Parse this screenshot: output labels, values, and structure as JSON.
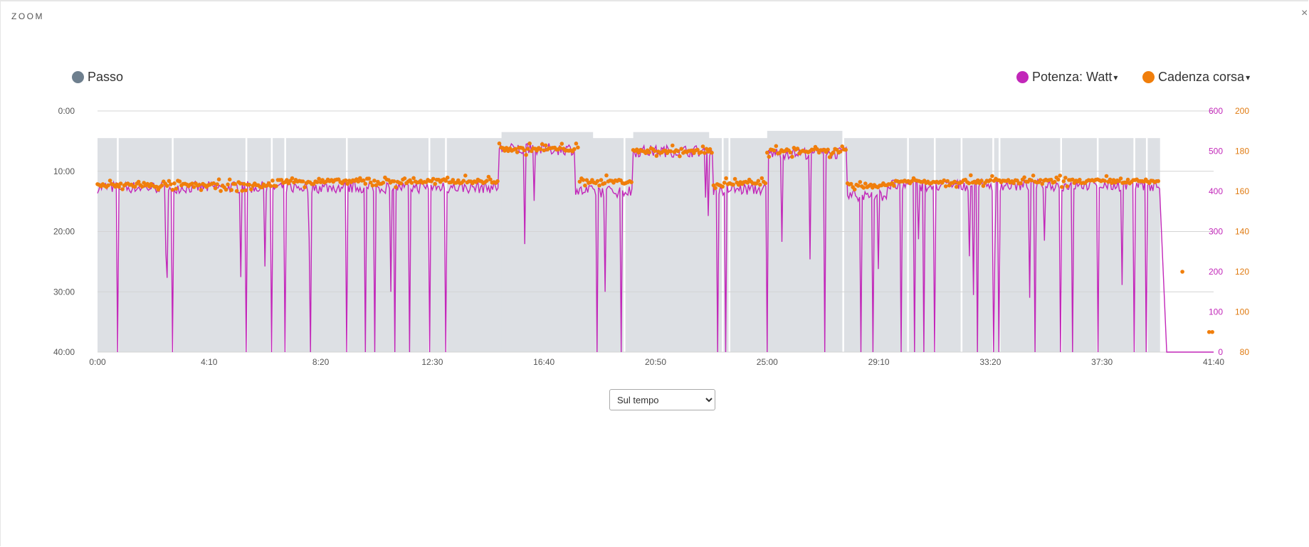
{
  "window": {
    "title": "ZOOM",
    "close_label": "×"
  },
  "legend": {
    "left": [
      {
        "name": "Passo",
        "color": "#6e7f8e"
      }
    ],
    "right": [
      {
        "name": "Potenza: Watt",
        "color": "#c227b9",
        "caret": "▾"
      },
      {
        "name": "Cadenza corsa",
        "color": "#f07e0b",
        "caret": "▾"
      }
    ]
  },
  "control": {
    "selected": "Sul tempo",
    "options": [
      "Sul tempo"
    ]
  },
  "chart_data": {
    "type": "line",
    "x_ticks": [
      "0:00",
      "4:10",
      "8:20",
      "12:30",
      "16:40",
      "20:50",
      "25:00",
      "29:10",
      "33:20",
      "37:30",
      "41:40"
    ],
    "x_range_seconds": [
      0,
      2500
    ],
    "grid": true,
    "axes": {
      "pace": {
        "label": "",
        "ticks": [
          "0:00",
          "10:00",
          "20:00",
          "30:00",
          "40:00"
        ],
        "range_min_per_km": [
          0,
          40
        ],
        "inverted": true,
        "color": "#555555"
      },
      "power": {
        "label": "",
        "ticks": [
          "600",
          "500",
          "400",
          "300",
          "200",
          "100",
          "0"
        ],
        "range": [
          0,
          600
        ],
        "color": "#c227b9"
      },
      "cadence": {
        "label": "",
        "ticks": [
          "200",
          "180",
          "160",
          "140",
          "120",
          "100",
          "80"
        ],
        "range": [
          80,
          200
        ],
        "color": "#e07a10"
      }
    },
    "series": [
      {
        "name": "Passo",
        "type": "area",
        "axis": "pace",
        "color": "#dde0e4",
        "segments": [
          {
            "x": [
              0,
              1400
            ],
            "y": 4.5
          },
          {
            "x": [
              905,
              1110
            ],
            "y": 3.5
          },
          {
            "x": [
              1200,
              1370
            ],
            "y": 3.5
          },
          {
            "x": [
              1500,
              1670
            ],
            "y": 3.3
          },
          {
            "x": [
              1400,
              2380
            ],
            "y": 4.5
          }
        ],
        "gaps": [
          45,
          168,
          333,
          390,
          420,
          558,
          743,
          780,
          1180,
          1400,
          1415,
          1670,
          1815,
          1875,
          1935,
          2006,
          2020,
          2158,
          2240,
          2322,
          2350
        ]
      },
      {
        "name": "Potenza: Watt",
        "type": "line",
        "axis": "power",
        "color": "#c227b9",
        "levels": [
          {
            "x": [
              0,
              900
            ],
            "y": 410
          },
          {
            "x": [
              900,
              1070
            ],
            "y": 505
          },
          {
            "x": [
              1070,
              1200
            ],
            "y": 400
          },
          {
            "x": [
              1200,
              1380
            ],
            "y": 500
          },
          {
            "x": [
              1380,
              1500
            ],
            "y": 405
          },
          {
            "x": [
              1500,
              1680
            ],
            "y": 495
          },
          {
            "x": [
              1680,
              1770
            ],
            "y": 390
          },
          {
            "x": [
              1770,
              2380
            ],
            "y": 415
          }
        ],
        "drops": [
          45,
          168,
          333,
          390,
          420,
          478,
          558,
          600,
          620,
          667,
          698,
          743,
          780,
          1120,
          1173,
          1390,
          1408,
          1500,
          1630,
          1710,
          1737,
          1800,
          1830,
          1850,
          1875,
          1970,
          2006,
          2020,
          2100,
          2158,
          2185,
          2240,
          2322,
          2350,
          2390
        ],
        "tail": {
          "x": [
            2395,
            2500
          ],
          "y": 0
        }
      },
      {
        "name": "Cadenza corsa",
        "type": "scatter",
        "axis": "cadence",
        "color": "#f07e0b",
        "levels": [
          {
            "x": [
              0,
              400
            ],
            "y": 163
          },
          {
            "x": [
              400,
              900
            ],
            "y": 165
          },
          {
            "x": [
              900,
              1080
            ],
            "y": 181
          },
          {
            "x": [
              1080,
              1200
            ],
            "y": 165
          },
          {
            "x": [
              1200,
              1380
            ],
            "y": 180
          },
          {
            "x": [
              1380,
              1500
            ],
            "y": 164
          },
          {
            "x": [
              1500,
              1680
            ],
            "y": 180
          },
          {
            "x": [
              1680,
              1780
            ],
            "y": 163
          },
          {
            "x": [
              1780,
              2380
            ],
            "y": 165
          }
        ],
        "outliers": [
          {
            "x": 2430,
            "y": 120
          },
          {
            "x": 2490,
            "y": 90
          },
          {
            "x": 2497,
            "y": 90
          }
        ]
      }
    ]
  }
}
